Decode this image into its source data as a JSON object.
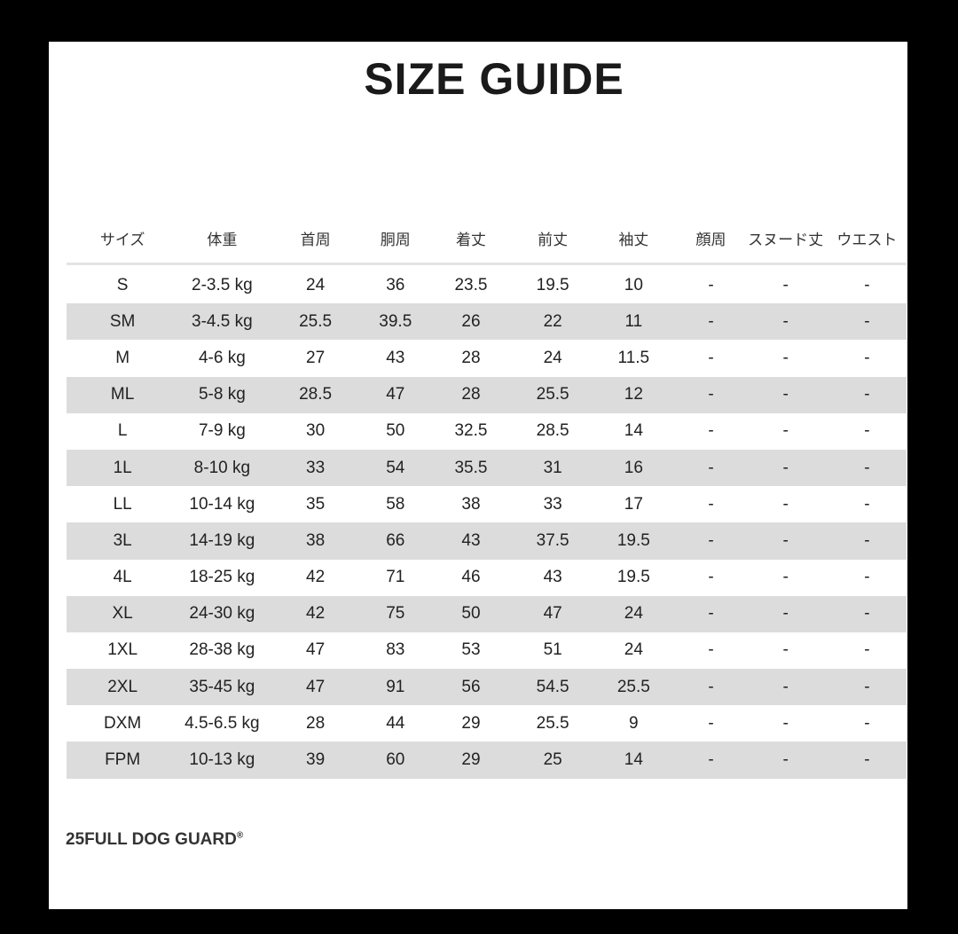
{
  "title": "SIZE GUIDE",
  "table": {
    "headers": [
      "サイズ",
      "体重",
      "首周",
      "胴周",
      "着丈",
      "前丈",
      "袖丈",
      "顔周",
      "スヌード丈",
      "ウエスト"
    ],
    "rows": [
      [
        "S",
        "2-3.5 kg",
        "24",
        "36",
        "23.5",
        "19.5",
        "10",
        "-",
        "-",
        "-"
      ],
      [
        "SM",
        "3-4.5 kg",
        "25.5",
        "39.5",
        "26",
        "22",
        "11",
        "-",
        "-",
        "-"
      ],
      [
        "M",
        "4-6 kg",
        "27",
        "43",
        "28",
        "24",
        "11.5",
        "-",
        "-",
        "-"
      ],
      [
        "ML",
        "5-8 kg",
        "28.5",
        "47",
        "28",
        "25.5",
        "12",
        "-",
        "-",
        "-"
      ],
      [
        "L",
        "7-9 kg",
        "30",
        "50",
        "32.5",
        "28.5",
        "14",
        "-",
        "-",
        "-"
      ],
      [
        "1L",
        "8-10 kg",
        "33",
        "54",
        "35.5",
        "31",
        "16",
        "-",
        "-",
        "-"
      ],
      [
        "LL",
        "10-14 kg",
        "35",
        "58",
        "38",
        "33",
        "17",
        "-",
        "-",
        "-"
      ],
      [
        "3L",
        "14-19 kg",
        "38",
        "66",
        "43",
        "37.5",
        "19.5",
        "-",
        "-",
        "-"
      ],
      [
        "4L",
        "18-25 kg",
        "42",
        "71",
        "46",
        "43",
        "19.5",
        "-",
        "-",
        "-"
      ],
      [
        "XL",
        "24-30 kg",
        "42",
        "75",
        "50",
        "47",
        "24",
        "-",
        "-",
        "-"
      ],
      [
        "1XL",
        "28-38 kg",
        "47",
        "83",
        "53",
        "51",
        "24",
        "-",
        "-",
        "-"
      ],
      [
        "2XL",
        "35-45 kg",
        "47",
        "91",
        "56",
        "54.5",
        "25.5",
        "-",
        "-",
        "-"
      ],
      [
        "DXM",
        "4.5-6.5 kg",
        "28",
        "44",
        "29",
        "25.5",
        "9",
        "-",
        "-",
        "-"
      ],
      [
        "FPM",
        "10-13 kg",
        "39",
        "60",
        "29",
        "25",
        "14",
        "-",
        "-",
        "-"
      ]
    ]
  },
  "footer": {
    "brand": "25FULL DOG GUARD",
    "mark": "®"
  },
  "colors": {
    "stripe": "#dcdcdc",
    "background": "#000000",
    "card": "#ffffff"
  }
}
